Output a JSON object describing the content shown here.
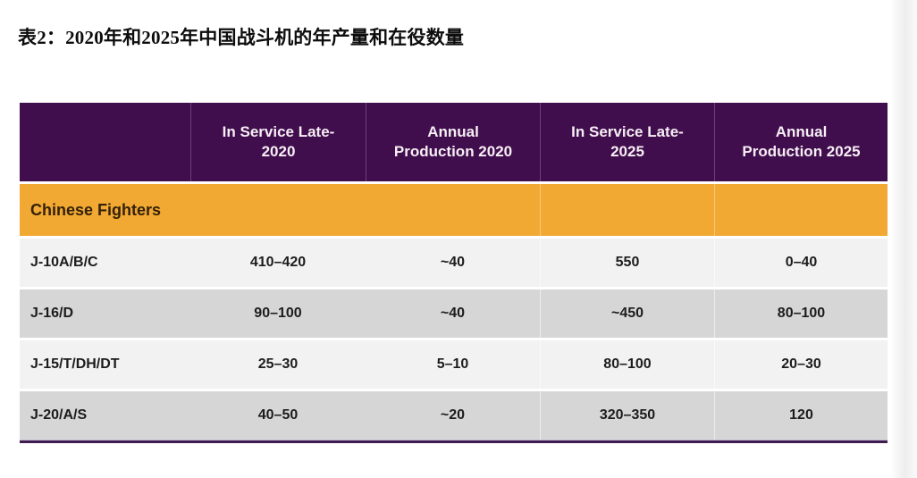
{
  "page": {
    "title": "表2：2020年和2025年中国战斗机的年产量和在役数量"
  },
  "colors": {
    "header_bg": "#400D4D",
    "header_text": "#F6EFF4",
    "group_bg": "#F2A933",
    "group_text": "#33210A",
    "row_light": "#F2F2F2",
    "row_dark": "#D6D6D6",
    "bottom_rule": "#3F1D51"
  },
  "table": {
    "header": [
      {
        "line1": "",
        "line2": ""
      },
      {
        "line1": "In Service Late-",
        "line2": "2020"
      },
      {
        "line1": "Annual",
        "line2": "Production 2020"
      },
      {
        "line1": "In Service Late-",
        "line2": "2025"
      },
      {
        "line1": "Annual",
        "line2": "Production 2025"
      }
    ],
    "group_label": "Chinese Fighters",
    "rows": [
      {
        "label": "J-10A/B/C",
        "values": [
          "410–420",
          "~40",
          "550",
          "0–40"
        ]
      },
      {
        "label": "J-16/D",
        "values": [
          "90–100",
          "~40",
          "~450",
          "80–100"
        ]
      },
      {
        "label": "J-15/T/DH/DT",
        "values": [
          "25–30",
          "5–10",
          "80–100",
          "20–30"
        ]
      },
      {
        "label": "J-20/A/S",
        "values": [
          "40–50",
          "~20",
          "320–350",
          "120"
        ]
      }
    ]
  }
}
